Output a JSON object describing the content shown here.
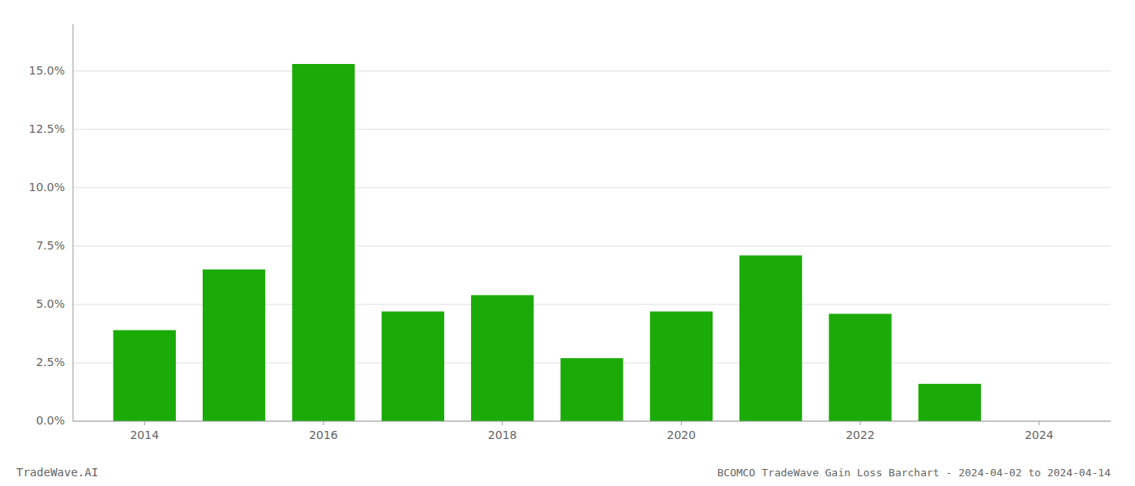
{
  "chart_data": {
    "type": "bar",
    "title": "BCOMCO TradeWave Gain Loss Barchart - 2024-04-02 to 2024-04-14",
    "annotations": [
      "TradeWave.AI"
    ],
    "x": [
      2014,
      2015,
      2016,
      2017,
      2018,
      2019,
      2020,
      2021,
      2022,
      2023,
      2024
    ],
    "values": [
      0.039,
      0.065,
      0.153,
      0.047,
      0.054,
      0.027,
      0.047,
      0.071,
      0.046,
      0.016,
      0.0
    ],
    "color": "#1aab08",
    "xlim": [
      2013.2,
      2024.8
    ],
    "xticks": [
      2014,
      2016,
      2018,
      2020,
      2022,
      2024
    ],
    "ylim": [
      0,
      0.17
    ],
    "yticks": [
      {
        "value": 0.0,
        "label": "0.0%"
      },
      {
        "value": 0.025,
        "label": "2.5%"
      },
      {
        "value": 0.05,
        "label": "5.0%"
      },
      {
        "value": 0.075,
        "label": "7.5%"
      },
      {
        "value": 0.1,
        "label": "10.0%"
      },
      {
        "value": 0.125,
        "label": "12.5%"
      },
      {
        "value": 0.15,
        "label": "15.0%"
      }
    ],
    "grid": true
  }
}
